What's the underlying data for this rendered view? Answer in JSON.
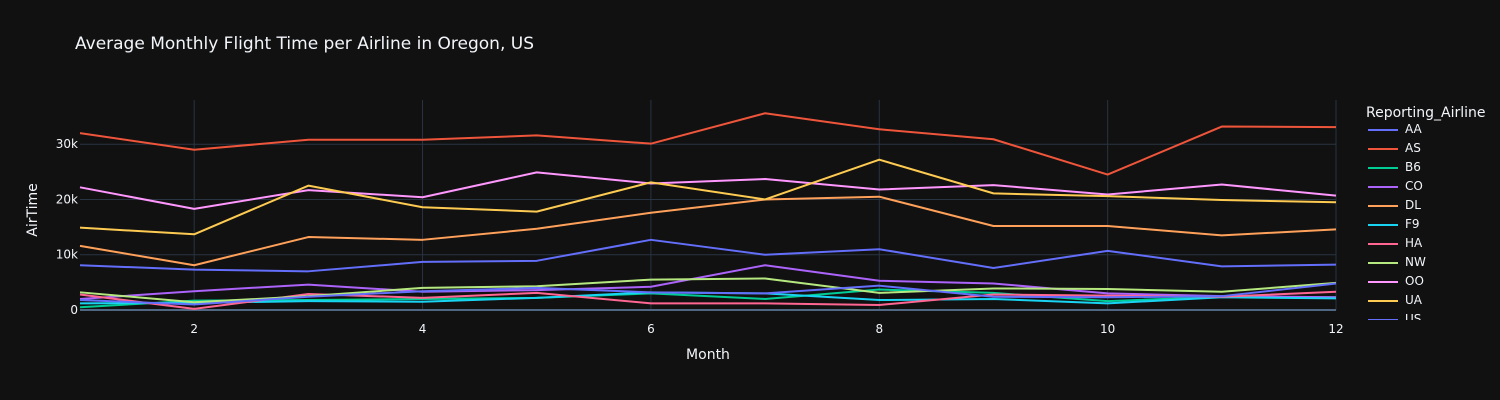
{
  "chart_data": {
    "type": "line",
    "title": "Average Monthly Flight Time per Airline in Oregon, US",
    "xlabel": "Month",
    "ylabel": "AirTime",
    "xlim": [
      1,
      12
    ],
    "ylim": [
      0,
      38000
    ],
    "x_ticks": [
      2,
      4,
      6,
      8,
      10,
      12
    ],
    "y_ticks": [
      0,
      10000,
      20000,
      30000
    ],
    "y_tick_labels": [
      "0",
      "10k",
      "20k",
      "30k"
    ],
    "grid": true,
    "legend_title": "Reporting_Airline",
    "legend_position": "right",
    "x": [
      1,
      2,
      3,
      4,
      5,
      6,
      7,
      8,
      9,
      10,
      11,
      12
    ],
    "series": [
      {
        "name": "AA",
        "color": "#636efa",
        "values": [
          8100,
          7300,
          7000,
          8700,
          8900,
          12700,
          10000,
          11000,
          7600,
          10700,
          7900,
          8200
        ]
      },
      {
        "name": "AS",
        "color": "#ef553b",
        "values": [
          32000,
          29000,
          30800,
          30800,
          31600,
          30100,
          35600,
          32700,
          30900,
          24500,
          33200,
          33100
        ]
      },
      {
        "name": "B6",
        "color": "#00cc96",
        "values": [
          500,
          1700,
          1800,
          2000,
          2200,
          3000,
          2000,
          3700,
          3100,
          1600,
          2400,
          2300
        ]
      },
      {
        "name": "CO",
        "color": "#ab63fa",
        "values": [
          2000,
          3400,
          4600,
          3300,
          3600,
          4200,
          8100,
          5300,
          4800,
          3000,
          2500,
          2300
        ]
      },
      {
        "name": "DL",
        "color": "#ffa15a",
        "values": [
          11600,
          8100,
          13200,
          12700,
          14700,
          17600,
          20000,
          20500,
          15200,
          15200,
          13500,
          14600
        ]
      },
      {
        "name": "F9",
        "color": "#19d3f3",
        "values": [
          1200,
          1300,
          1600,
          1500,
          2200,
          3200,
          3000,
          1800,
          2000,
          1200,
          2300,
          2100
        ]
      },
      {
        "name": "HA",
        "color": "#ff6692",
        "values": [
          2800,
          200,
          2900,
          2200,
          3100,
          1200,
          1200,
          900,
          2800,
          2600,
          2400,
          3300
        ]
      },
      {
        "name": "NW",
        "color": "#b6e880",
        "values": [
          3200,
          1400,
          2500,
          4000,
          4300,
          5500,
          5700,
          3100,
          3900,
          3800,
          3300,
          4900
        ]
      },
      {
        "name": "OO",
        "color": "#ff97ff",
        "values": [
          22200,
          18300,
          21700,
          20400,
          24900,
          22900,
          23700,
          21800,
          22600,
          20900,
          22700,
          20700
        ]
      },
      {
        "name": "UA",
        "color": "#fecb52",
        "values": [
          14900,
          13700,
          22500,
          18600,
          17800,
          23100,
          20000,
          27200,
          21100,
          20600,
          19900,
          19500
        ]
      },
      {
        "name": "US",
        "color": "#636efa",
        "values": [
          1800,
          1000,
          2400,
          3400,
          4000,
          3200,
          3000,
          4400,
          2400,
          2300,
          2500,
          4800
        ]
      }
    ]
  }
}
